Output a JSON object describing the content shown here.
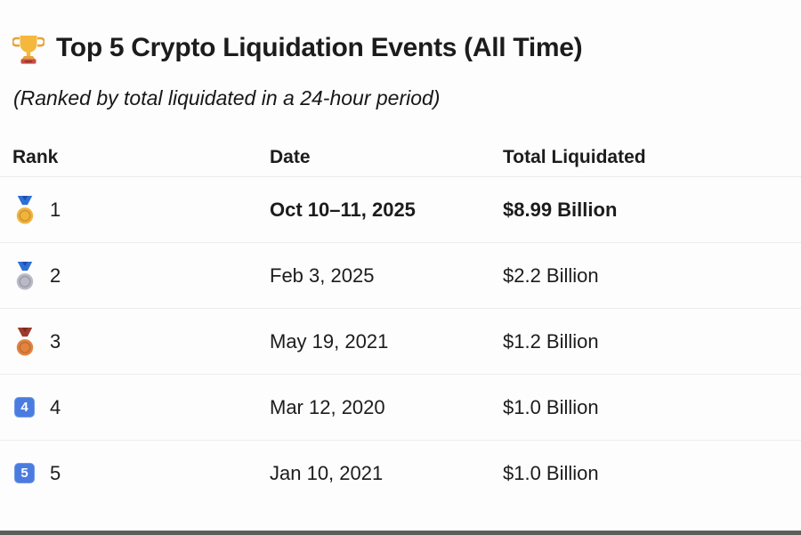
{
  "header": {
    "icon": "trophy",
    "title": "Top 5 Crypto Liquidation Events (All Time)",
    "subtitle": "(Ranked by total liquidated in a 24-hour period)"
  },
  "table": {
    "columns": [
      {
        "label": "Rank"
      },
      {
        "label": "Date"
      },
      {
        "label": "Total Liquidated"
      }
    ],
    "rows": [
      {
        "rank": "1",
        "icon": "gold-medal",
        "date": "Oct 10–11, 2025",
        "total": "$8.99 Billion",
        "emphasis": true
      },
      {
        "rank": "2",
        "icon": "silver-medal",
        "date": "Feb 3, 2025",
        "total": "$2.2 Billion",
        "emphasis": false
      },
      {
        "rank": "3",
        "icon": "bronze-medal",
        "date": "May 19, 2021",
        "total": "$1.2 Billion",
        "emphasis": false
      },
      {
        "rank": "4",
        "icon": "blue-badge",
        "badge_text": "4",
        "date": "Mar 12, 2020",
        "total": "$1.0 Billion",
        "emphasis": false
      },
      {
        "rank": "5",
        "icon": "blue-badge",
        "badge_text": "5",
        "date": "Jan 10, 2021",
        "total": "$1.0 Billion",
        "emphasis": false
      }
    ]
  },
  "chart_data": {
    "type": "table",
    "title": "Top 5 Crypto Liquidation Events (All Time)",
    "subtitle": "(Ranked by total liquidated in a 24-hour period)",
    "columns": [
      "Rank",
      "Date",
      "Total Liquidated"
    ],
    "rows": [
      [
        "1",
        "Oct 10–11, 2025",
        "$8.99 Billion"
      ],
      [
        "2",
        "Feb 3, 2025",
        "$2.2 Billion"
      ],
      [
        "3",
        "May 19, 2021",
        "$1.2 Billion"
      ],
      [
        "4",
        "Mar 12, 2020",
        "$1.0 Billion"
      ],
      [
        "5",
        "Jan 10, 2021",
        "$1.0 Billion"
      ]
    ],
    "total_liquidated_billions_usd": [
      8.99,
      2.2,
      1.2,
      1.0,
      1.0
    ]
  },
  "colors": {
    "text": "#1c1c1c",
    "divider": "#ececec",
    "bottom_bar": "#5d5d5d",
    "badge_blue": "#4a7ce0",
    "badge_border": "#6f97e8",
    "medal_gold": "#f2b33d",
    "medal_silver": "#b9bac6",
    "medal_bronze": "#e2833f",
    "ribbon_blue": "#2f6fd6",
    "ribbon_blue_dark": "#1d4fa8",
    "ribbon_red": "#9c3b2c",
    "ribbon_red_dark": "#7a2b20",
    "trophy_gold": "#f5b83d",
    "trophy_gold_dark": "#e8a33d",
    "trophy_base_red": "#c94f46",
    "trophy_base_dark": "#8f3a33"
  }
}
